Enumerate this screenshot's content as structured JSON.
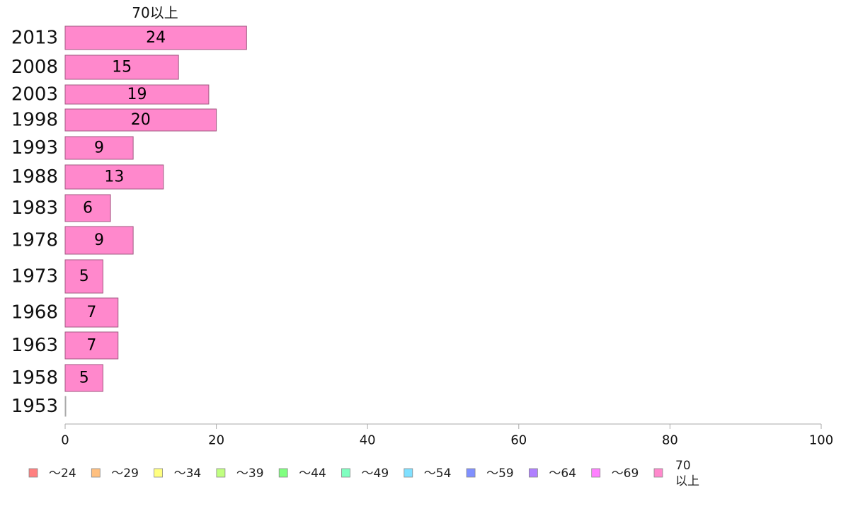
{
  "chart_data": {
    "type": "bar",
    "orientation": "horizontal",
    "series_title": "70以上",
    "categories": [
      "2013",
      "2008",
      "2003",
      "1998",
      "1993",
      "1988",
      "1983",
      "1978",
      "1973",
      "1968",
      "1963",
      "1958",
      "1953"
    ],
    "values": [
      24,
      15,
      19,
      20,
      9,
      13,
      6,
      9,
      5,
      7,
      7,
      5,
      0
    ],
    "data_labels": [
      "24",
      "15",
      "19",
      "20",
      "9",
      "13",
      "6",
      "9",
      "5",
      "7",
      "7",
      "5",
      ""
    ],
    "xlim": [
      0,
      100
    ],
    "xticks": [
      "0",
      "20",
      "40",
      "60",
      "80",
      "100"
    ],
    "grid": false,
    "bar_color": "#ff88cc",
    "bar_edge_color": "#a05a82",
    "legend": {
      "placement": "bottom",
      "items": [
        {
          "label": "～24",
          "color": "#ff8080"
        },
        {
          "label": "～29",
          "color": "#ffc080"
        },
        {
          "label": "～34",
          "color": "#ffff80"
        },
        {
          "label": "～39",
          "color": "#c0ff80"
        },
        {
          "label": "～44",
          "color": "#80ff80"
        },
        {
          "label": "～49",
          "color": "#80ffc0"
        },
        {
          "label": "～54",
          "color": "#80e0ff"
        },
        {
          "label": "～59",
          "color": "#8090ff"
        },
        {
          "label": "～64",
          "color": "#b080ff"
        },
        {
          "label": "～69",
          "color": "#ff80ff"
        },
        {
          "label": "70以上",
          "label_lines": [
            "70",
            "以上"
          ],
          "color": "#ff88cc"
        }
      ]
    }
  }
}
